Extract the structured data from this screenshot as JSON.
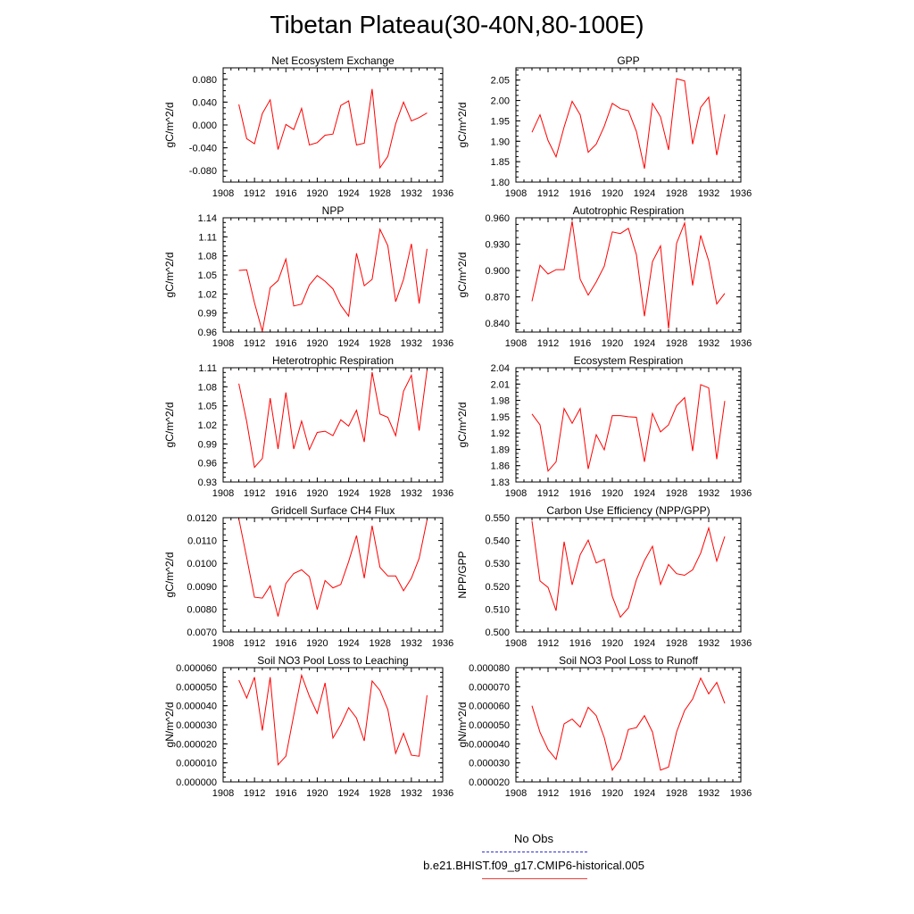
{
  "page": {
    "title": "Tibetan Plateau(30-40N,80-100E)"
  },
  "legend": {
    "entries": [
      {
        "label": "No Obs",
        "color": "#3333cc",
        "style": "dashed"
      },
      {
        "label": "b.e21.BHIST.f09_g17.CMIP6-historical.005",
        "color": "#e8413a",
        "style": "solid"
      }
    ]
  },
  "chart_data": [
    {
      "type": "line",
      "title": "Net Ecosystem Exchange",
      "ylabel": "gC/m^2/d",
      "xlim": [
        1908,
        1936
      ],
      "ylim": [
        -0.1,
        0.1
      ],
      "xticks": [
        "1908",
        "1912",
        "1916",
        "1920",
        "1924",
        "1928",
        "1932",
        "1936"
      ],
      "yticks": [
        "-0.080",
        "-0.040",
        "0.000",
        "0.040",
        "0.080"
      ],
      "series": [
        {
          "color": "#ff0000",
          "x": [
            1910,
            1911,
            1912,
            1913,
            1914,
            1915,
            1916,
            1917,
            1918,
            1919,
            1920,
            1921,
            1922,
            1923,
            1924,
            1925,
            1926,
            1927,
            1928,
            1929,
            1930,
            1931,
            1932,
            1933,
            1934
          ],
          "values": [
            0.036,
            -0.024,
            -0.033,
            0.02,
            0.044,
            -0.043,
            0.001,
            -0.008,
            0.029,
            -0.035,
            -0.031,
            -0.018,
            -0.016,
            0.034,
            0.042,
            -0.035,
            -0.032,
            0.063,
            -0.075,
            -0.055,
            0.002,
            0.04,
            0.007,
            0.013,
            0.021
          ]
        }
      ]
    },
    {
      "type": "line",
      "title": "GPP",
      "ylabel": "gC/m^2/d",
      "xlim": [
        1908,
        1936
      ],
      "ylim": [
        1.8,
        2.08
      ],
      "xticks": [
        "1908",
        "1912",
        "1916",
        "1920",
        "1924",
        "1928",
        "1932",
        "1936"
      ],
      "yticks": [
        "1.80",
        "1.85",
        "1.90",
        "1.95",
        "2.00",
        "2.05"
      ],
      "series": [
        {
          "color": "#ff0000",
          "x": [
            1910,
            1911,
            1912,
            1913,
            1914,
            1915,
            1916,
            1917,
            1918,
            1919,
            1920,
            1921,
            1922,
            1923,
            1924,
            1925,
            1926,
            1927,
            1928,
            1929,
            1930,
            1931,
            1932,
            1933,
            1934
          ],
          "values": [
            1.922,
            1.965,
            1.902,
            1.862,
            1.935,
            1.998,
            1.965,
            1.873,
            1.893,
            1.937,
            1.993,
            1.98,
            1.975,
            1.924,
            1.833,
            1.993,
            1.96,
            1.879,
            2.053,
            2.048,
            1.893,
            1.983,
            2.008,
            1.866,
            1.966
          ]
        }
      ]
    },
    {
      "type": "line",
      "title": "NPP",
      "ylabel": "gC/m^2/d",
      "xlim": [
        1908,
        1936
      ],
      "ylim": [
        0.96,
        1.14
      ],
      "xticks": [
        "1908",
        "1912",
        "1916",
        "1920",
        "1924",
        "1928",
        "1932",
        "1936"
      ],
      "yticks": [
        "0.96",
        "0.99",
        "1.02",
        "1.05",
        "1.08",
        "1.11",
        "1.14"
      ],
      "series": [
        {
          "color": "#ff0000",
          "x": [
            1910,
            1911,
            1912,
            1913,
            1914,
            1915,
            1916,
            1917,
            1918,
            1919,
            1920,
            1921,
            1922,
            1923,
            1924,
            1925,
            1926,
            1927,
            1928,
            1929,
            1930,
            1931,
            1932,
            1933,
            1934
          ],
          "values": [
            1.057,
            1.058,
            1.006,
            0.961,
            1.03,
            1.041,
            1.075,
            1.001,
            1.004,
            1.034,
            1.049,
            1.04,
            1.028,
            1.002,
            0.985,
            1.084,
            1.033,
            1.043,
            1.122,
            1.096,
            1.008,
            1.043,
            1.099,
            1.005,
            1.091
          ]
        }
      ]
    },
    {
      "type": "line",
      "title": "Autotrophic Respiration",
      "ylabel": "gC/m^2/d",
      "xlim": [
        1908,
        1936
      ],
      "ylim": [
        0.83,
        0.96
      ],
      "xticks": [
        "1908",
        "1912",
        "1916",
        "1920",
        "1924",
        "1928",
        "1932",
        "1936"
      ],
      "yticks": [
        "0.840",
        "0.870",
        "0.900",
        "0.930",
        "0.960"
      ],
      "series": [
        {
          "color": "#ff0000",
          "x": [
            1910,
            1911,
            1912,
            1913,
            1914,
            1915,
            1916,
            1917,
            1918,
            1919,
            1920,
            1921,
            1922,
            1923,
            1924,
            1925,
            1926,
            1927,
            1928,
            1929,
            1930,
            1931,
            1932,
            1933,
            1934
          ],
          "values": [
            0.865,
            0.906,
            0.896,
            0.901,
            0.901,
            0.956,
            0.89,
            0.872,
            0.887,
            0.905,
            0.944,
            0.942,
            0.948,
            0.918,
            0.848,
            0.91,
            0.928,
            0.834,
            0.931,
            0.954,
            0.883,
            0.94,
            0.911,
            0.862,
            0.874
          ]
        }
      ]
    },
    {
      "type": "line",
      "title": "Heterotrophic Respiration",
      "ylabel": "gC/m^2/d",
      "xlim": [
        1908,
        1936
      ],
      "ylim": [
        0.93,
        1.11
      ],
      "xticks": [
        "1908",
        "1912",
        "1916",
        "1920",
        "1924",
        "1928",
        "1932",
        "1936"
      ],
      "yticks": [
        "0.93",
        "0.96",
        "0.99",
        "1.02",
        "1.05",
        "1.08",
        "1.11"
      ],
      "series": [
        {
          "color": "#ff0000",
          "x": [
            1910,
            1911,
            1912,
            1913,
            1914,
            1915,
            1916,
            1917,
            1918,
            1919,
            1920,
            1921,
            1922,
            1923,
            1924,
            1925,
            1926,
            1927,
            1928,
            1929,
            1930,
            1931,
            1932,
            1933,
            1934
          ],
          "values": [
            1.085,
            1.025,
            0.953,
            0.967,
            1.062,
            0.982,
            1.071,
            0.982,
            1.026,
            0.981,
            1.008,
            1.01,
            1.003,
            1.028,
            1.018,
            1.043,
            0.993,
            1.103,
            1.037,
            1.032,
            1.003,
            1.073,
            1.098,
            1.011,
            1.106
          ]
        }
      ]
    },
    {
      "type": "line",
      "title": "Ecosystem Respiration",
      "ylabel": "gC/m^2/d",
      "xlim": [
        1908,
        1936
      ],
      "ylim": [
        1.83,
        2.04
      ],
      "xticks": [
        "1908",
        "1912",
        "1916",
        "1920",
        "1924",
        "1928",
        "1932",
        "1936"
      ],
      "yticks": [
        "1.83",
        "1.86",
        "1.89",
        "1.92",
        "1.95",
        "1.98",
        "2.01",
        "2.04"
      ],
      "series": [
        {
          "color": "#ff0000",
          "x": [
            1910,
            1911,
            1912,
            1913,
            1914,
            1915,
            1916,
            1917,
            1918,
            1919,
            1920,
            1921,
            1922,
            1923,
            1924,
            1925,
            1926,
            1927,
            1928,
            1929,
            1930,
            1931,
            1932,
            1933,
            1934
          ],
          "values": [
            1.955,
            1.935,
            1.85,
            1.867,
            1.965,
            1.938,
            1.965,
            1.854,
            1.917,
            1.889,
            1.952,
            1.952,
            1.95,
            1.949,
            1.867,
            1.956,
            1.922,
            1.935,
            1.97,
            1.985,
            1.887,
            2.009,
            2.003,
            1.872,
            1.979
          ]
        }
      ]
    },
    {
      "type": "line",
      "title": "Gridcell Surface CH4 Flux",
      "ylabel": "gC/m^2/d",
      "xlim": [
        1908,
        1936
      ],
      "ylim": [
        0.007,
        0.012
      ],
      "xticks": [
        "1908",
        "1912",
        "1916",
        "1920",
        "1924",
        "1928",
        "1932",
        "1936"
      ],
      "yticks": [
        "0.0070",
        "0.0080",
        "0.0090",
        "0.0100",
        "0.0110",
        "0.0120"
      ],
      "series": [
        {
          "color": "#ff0000",
          "x": [
            1910,
            1911,
            1912,
            1913,
            1914,
            1915,
            1916,
            1917,
            1918,
            1919,
            1920,
            1921,
            1922,
            1923,
            1924,
            1925,
            1926,
            1927,
            1928,
            1929,
            1930,
            1931,
            1932,
            1933,
            1934
          ],
          "values": [
            0.01195,
            0.01025,
            0.00852,
            0.00848,
            0.00902,
            0.00768,
            0.00912,
            0.00956,
            0.00972,
            0.00942,
            0.00798,
            0.00925,
            0.00893,
            0.00908,
            0.01008,
            0.01122,
            0.00935,
            0.01165,
            0.00983,
            0.00945,
            0.00945,
            0.0088,
            0.00935,
            0.01022,
            0.0119
          ]
        }
      ]
    },
    {
      "type": "line",
      "title": "Carbon Use Efficiency (NPP/GPP)",
      "ylabel": "NPP/GPP",
      "xlim": [
        1908,
        1936
      ],
      "ylim": [
        0.5,
        0.55
      ],
      "xticks": [
        "1908",
        "1912",
        "1916",
        "1920",
        "1924",
        "1928",
        "1932",
        "1936"
      ],
      "yticks": [
        "0.500",
        "0.510",
        "0.520",
        "0.530",
        "0.540",
        "0.550"
      ],
      "series": [
        {
          "color": "#ff0000",
          "x": [
            1910,
            1911,
            1912,
            1913,
            1914,
            1915,
            1916,
            1917,
            1918,
            1919,
            1920,
            1921,
            1922,
            1923,
            1924,
            1925,
            1926,
            1927,
            1928,
            1929,
            1930,
            1931,
            1932,
            1933,
            1934
          ],
          "values": [
            0.5485,
            0.5223,
            0.5195,
            0.5093,
            0.5395,
            0.5206,
            0.5338,
            0.5402,
            0.5302,
            0.5318,
            0.5155,
            0.5065,
            0.5105,
            0.5228,
            0.5312,
            0.5375,
            0.5208,
            0.5295,
            0.5255,
            0.5248,
            0.5272,
            0.5345,
            0.5455,
            0.531,
            0.5418
          ]
        }
      ]
    },
    {
      "type": "line",
      "title": "Soil NO3 Pool Loss to Leaching",
      "ylabel": "gN/m^2/d",
      "xlim": [
        1908,
        1936
      ],
      "ylim": [
        0.0,
        6e-05
      ],
      "xticks": [
        "1908",
        "1912",
        "1916",
        "1920",
        "1924",
        "1928",
        "1932",
        "1936"
      ],
      "yticks": [
        "0.000000",
        "0.000010",
        "0.000020",
        "0.000030",
        "0.000040",
        "0.000050",
        "0.000060"
      ],
      "series": [
        {
          "color": "#ff0000",
          "x": [
            1910,
            1911,
            1912,
            1913,
            1914,
            1915,
            1916,
            1917,
            1918,
            1919,
            1920,
            1921,
            1922,
            1923,
            1924,
            1925,
            1926,
            1927,
            1928,
            1929,
            1930,
            1931,
            1932,
            1933,
            1934
          ],
          "values": [
            5.35e-05,
            4.4e-05,
            5.5e-05,
            2.7e-05,
            5.5e-05,
            9e-06,
            1.35e-05,
            3.5e-05,
            5.6e-05,
            4.5e-05,
            3.6e-05,
            5.2e-05,
            2.3e-05,
            3e-05,
            3.9e-05,
            3.35e-05,
            2.15e-05,
            5.3e-05,
            4.8e-05,
            3.8e-05,
            1.5e-05,
            2.55e-05,
            1.4e-05,
            1.35e-05,
            4.55e-05
          ]
        }
      ]
    },
    {
      "type": "line",
      "title": "Soil NO3 Pool Loss to Runoff",
      "ylabel": "gN/m^2/d",
      "xlim": [
        1908,
        1936
      ],
      "ylim": [
        2e-05,
        8e-05
      ],
      "xticks": [
        "1908",
        "1912",
        "1916",
        "1920",
        "1924",
        "1928",
        "1932",
        "1936"
      ],
      "yticks": [
        "0.000020",
        "0.000030",
        "0.000040",
        "0.000050",
        "0.000060",
        "0.000070",
        "0.000080"
      ],
      "series": [
        {
          "color": "#ff0000",
          "x": [
            1910,
            1911,
            1912,
            1913,
            1914,
            1915,
            1916,
            1917,
            1918,
            1919,
            1920,
            1921,
            1922,
            1923,
            1924,
            1925,
            1926,
            1927,
            1928,
            1929,
            1930,
            1931,
            1932,
            1933,
            1934
          ],
          "values": [
            6e-05,
            4.6e-05,
            3.7e-05,
            3.18e-05,
            5.05e-05,
            5.3e-05,
            4.88e-05,
            5.92e-05,
            5.48e-05,
            4.32e-05,
            2.62e-05,
            3.2e-05,
            4.75e-05,
            4.85e-05,
            5.48e-05,
            4.62e-05,
            2.62e-05,
            2.78e-05,
            4.62e-05,
            5.75e-05,
            6.35e-05,
            7.45e-05,
            6.62e-05,
            7.22e-05,
            6.12e-05
          ]
        }
      ]
    }
  ]
}
